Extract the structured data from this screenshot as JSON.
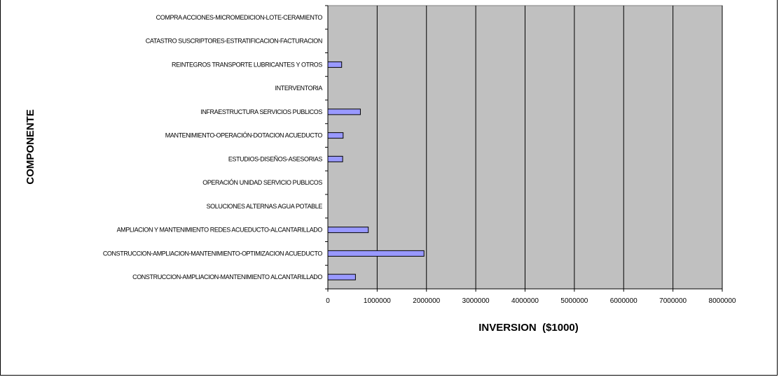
{
  "colors": {
    "plot_background": "#c0c0c0",
    "bar_fill": "#9999ff",
    "bar_stroke": "#000000",
    "gridline": "#000000"
  },
  "chart_data": {
    "type": "bar",
    "orientation": "horizontal",
    "title": "",
    "xlabel": "INVERSION  ($1000)",
    "ylabel": "COMPONENTE",
    "xlim": [
      0,
      8000000
    ],
    "xticks": [
      "0",
      "1000000",
      "2000000",
      "3000000",
      "4000000",
      "5000000",
      "6000000",
      "7000000",
      "8000000"
    ],
    "grid": "vertical",
    "legend": "none",
    "categories": [
      "CONSTRUCCION-AMPLIACION-MANTENIMIENTO ALCANTARILLADO",
      "CONSTRUCCION-AMPLIACION-MANTENIMIENTO-OPTIMIZACION ACUEDUCTO",
      "AMPLIACION Y MANTENIMIENTO REDES ACUEDUCTO-ALCANTARILLADO",
      "SOLUCIONES ALTERNAS AGUA POTABLE",
      "OPERACIÓN UNIDAD SERVICIO PUBLICOS",
      "ESTUDIOS-DISEÑOS-ASESORIAS",
      "MANTENIMIENTO-OPERACIÓN-DOTACION ACUEDUCTO",
      "INFRAESTRUCTURA SERVICIOS PUBLICOS",
      "INTERVENTORIA",
      "REINTEGROS TRANSPORTE LUBRICANTES Y OTROS",
      "CATASTRO SUSCRIPTORES-ESTRATIFICACION-FACTURACION",
      "COMPRA ACCIONES-MICROMEDICION-LOTE-CERAMIENTO"
    ],
    "values": [
      560000,
      1950000,
      820000,
      0,
      0,
      300000,
      310000,
      660000,
      0,
      280000,
      0,
      0
    ]
  }
}
